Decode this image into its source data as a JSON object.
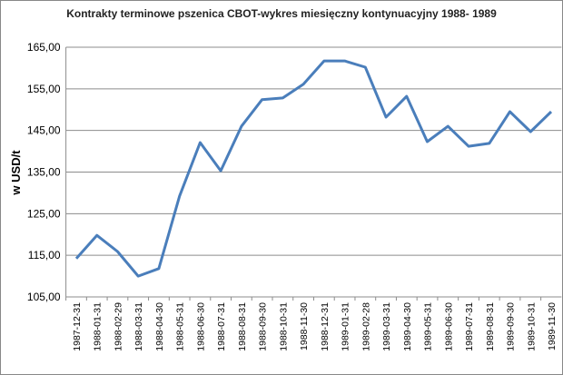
{
  "chart_data": {
    "type": "line",
    "title": "Kontrakty terminowe pszenica CBOT-wykres miesięczny kontynuacyjny 1988- 1989",
    "y_label": "w USD/t",
    "categories": [
      "1987-12-31",
      "1988-01-31",
      "1988-02-29",
      "1988-03-31",
      "1988-04-30",
      "1988-05-31",
      "1988-06-30",
      "1988-07-31",
      "1988-08-31",
      "1988-09-30",
      "1988-10-31",
      "1988-11-30",
      "1988-12-31",
      "1989-01-31",
      "1989-02-28",
      "1989-03-31",
      "1989-04-30",
      "1989-05-31",
      "1989-06-30",
      "1989-07-31",
      "1989-08-31",
      "1989-09-30",
      "1989-10-31",
      "1989-11-30"
    ],
    "values": [
      114.2,
      119.8,
      115.9,
      110.0,
      111.8,
      129.2,
      142.1,
      135.3,
      146.0,
      152.4,
      152.8,
      156.1,
      161.7,
      161.7,
      160.2,
      148.2,
      153.2,
      142.3,
      146.0,
      141.2,
      141.9,
      149.5,
      144.7,
      149.5
    ],
    "color": "#4a7ebb",
    "ylim": [
      105,
      165
    ],
    "yticks": [
      {
        "value": 105,
        "label": "105,00"
      },
      {
        "value": 115,
        "label": "115,00"
      },
      {
        "value": 125,
        "label": "125,00"
      },
      {
        "value": 135,
        "label": "135,00"
      },
      {
        "value": 145,
        "label": "145,00"
      },
      {
        "value": 155,
        "label": "155,00"
      },
      {
        "value": 165,
        "label": "165,00"
      }
    ],
    "grid": true
  }
}
